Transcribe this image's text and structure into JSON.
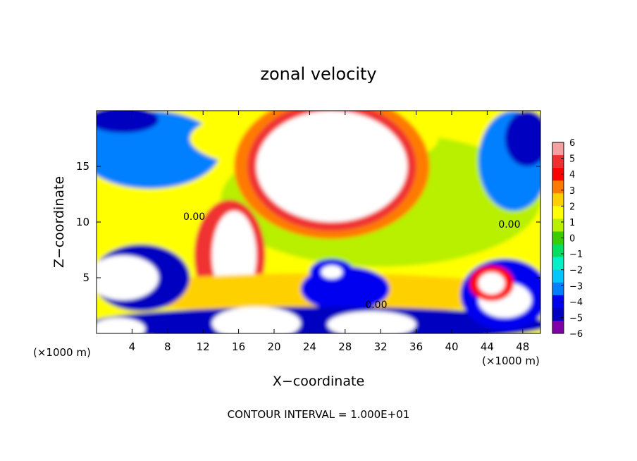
{
  "chart_data": {
    "type": "heatmap",
    "title": "zonal velocity",
    "xlabel": "X−coordinate",
    "ylabel": "Z−coordinate",
    "x_unit_left": "(×1000 m)",
    "x_unit_right": "(×1000 m)",
    "footer": "CONTOUR INTERVAL = 1.000E+01",
    "xlim": [
      0,
      50
    ],
    "ylim": [
      0,
      20
    ],
    "x_ticks": [
      4,
      8,
      12,
      16,
      20,
      24,
      28,
      32,
      36,
      40,
      44,
      48
    ],
    "x_tick_labels": [
      "4",
      "8",
      "12",
      "16",
      "20",
      "24",
      "28",
      "32",
      "36",
      "40",
      "44",
      "48"
    ],
    "y_ticks": [
      5,
      10,
      15
    ],
    "y_tick_labels": [
      "5",
      "10",
      "15"
    ],
    "colorbar": {
      "min": -6,
      "max": 6,
      "ticks": [
        6,
        5,
        4,
        3,
        2,
        1,
        0,
        -1,
        -2,
        -3,
        -4,
        -5,
        -6
      ],
      "tick_labels": [
        "6",
        "5",
        "4",
        "3",
        "2",
        "1",
        "0",
        "−1",
        "−2",
        "−3",
        "−4",
        "−5",
        "−6"
      ],
      "colors": [
        "#f4a0a0",
        "#f03030",
        "#ff0000",
        "#ff7a00",
        "#ffd000",
        "#ffff00",
        "#b8f000",
        "#3ccc00",
        "#00e060",
        "#00f0c8",
        "#00c8ff",
        "#0080ff",
        "#0000f0",
        "#0000c0",
        "#8000a8"
      ]
    },
    "contour_labels": [
      {
        "text": "0.00",
        "x": 11.0,
        "y": 10.5
      },
      {
        "text": "0.00",
        "x": 46.5,
        "y": 9.8
      },
      {
        "text": "0.00",
        "x": 31.5,
        "y": 2.6
      }
    ],
    "regions": [
      {
        "kind": "background",
        "value": 1.5
      },
      {
        "kind": "blob",
        "value": 1.0,
        "cx": 32,
        "cy": 12,
        "rx": 18,
        "ry": 6
      },
      {
        "kind": "blob",
        "value": -3.5,
        "cx": 6,
        "cy": 16.5,
        "rx": 8,
        "ry": 3.5
      },
      {
        "kind": "blob",
        "value": -5.0,
        "cx": 3,
        "cy": 19.2,
        "rx": 4,
        "ry": 1.2
      },
      {
        "kind": "blob",
        "value": -3.0,
        "cx": 47,
        "cy": 15.5,
        "rx": 4,
        "ry": 4.5
      },
      {
        "kind": "blob",
        "value": -4.5,
        "cx": 48.5,
        "cy": 17.5,
        "rx": 2.5,
        "ry": 2.5
      },
      {
        "kind": "blob",
        "value": 2.0,
        "cx": 24.5,
        "cy": 17.5,
        "rx": 14,
        "ry": 3
      },
      {
        "kind": "blob",
        "value": 3.0,
        "cx": 26.5,
        "cy": 15,
        "rx": 11,
        "ry": 6.5
      },
      {
        "kind": "blob",
        "value": 5.0,
        "cx": 26.5,
        "cy": 15,
        "rx": 9.5,
        "ry": 5.8
      },
      {
        "kind": "blob",
        "value": 6.5,
        "cx": 26.5,
        "cy": 15,
        "rx": 8.5,
        "ry": 5
      },
      {
        "kind": "blob",
        "value": 4.5,
        "cx": 15,
        "cy": 7,
        "rx": 4,
        "ry": 5
      },
      {
        "kind": "blob",
        "value": 6.5,
        "cx": 15.5,
        "cy": 7,
        "rx": 2.5,
        "ry": 4
      },
      {
        "kind": "blob",
        "value": 2.5,
        "cx": 25,
        "cy": 3.6,
        "rx": 24,
        "ry": 1.8
      },
      {
        "kind": "blob",
        "value": -4.0,
        "cx": 28,
        "cy": 4,
        "rx": 5,
        "ry": 2
      },
      {
        "kind": "blob",
        "value": -4.5,
        "cx": 5,
        "cy": 5,
        "rx": 5.5,
        "ry": 3
      },
      {
        "kind": "blob",
        "value": 6.5,
        "cx": 3,
        "cy": 5,
        "rx": 4,
        "ry": 2
      },
      {
        "kind": "blob",
        "value": -4.5,
        "cx": 25,
        "cy": 0.8,
        "rx": 26,
        "ry": 1.6
      },
      {
        "kind": "blob",
        "value": 6.5,
        "cx": 18,
        "cy": 0.9,
        "rx": 5,
        "ry": 1.5
      },
      {
        "kind": "blob",
        "value": 6.5,
        "cx": 31,
        "cy": 0.8,
        "rx": 5,
        "ry": 1.2
      },
      {
        "kind": "blob",
        "value": 6.5,
        "cx": 2.5,
        "cy": 0.4,
        "rx": 3,
        "ry": 1
      },
      {
        "kind": "blob",
        "value": -4.0,
        "cx": 46,
        "cy": 3.5,
        "rx": 5,
        "ry": 3.2
      },
      {
        "kind": "blob",
        "value": 6.5,
        "cx": 46,
        "cy": 3,
        "rx": 3,
        "ry": 1.6
      },
      {
        "kind": "blob",
        "value": 4.0,
        "cx": 44.5,
        "cy": 4.5,
        "rx": 2.5,
        "ry": 1.6
      },
      {
        "kind": "blob",
        "value": 6.5,
        "cx": 44.5,
        "cy": 4.5,
        "rx": 1.5,
        "ry": 1
      },
      {
        "kind": "blob",
        "value": -4.0,
        "cx": 26.5,
        "cy": 5.5,
        "rx": 2.5,
        "ry": 1.2
      },
      {
        "kind": "blob",
        "value": 6.5,
        "cx": 26.5,
        "cy": 5.5,
        "rx": 1.2,
        "ry": 0.6
      }
    ]
  }
}
